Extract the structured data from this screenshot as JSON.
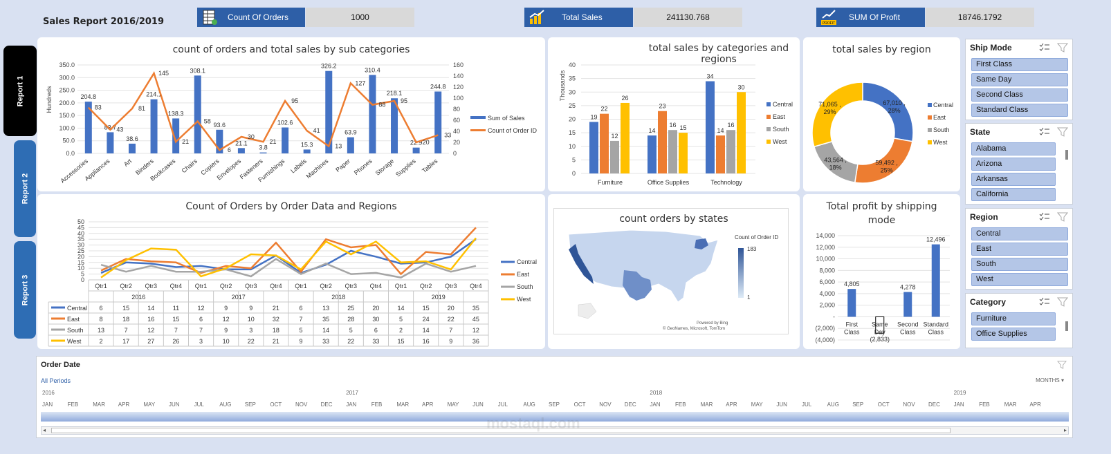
{
  "report_title": "Sales Report 2016/2019",
  "kpis": [
    {
      "label": "Count Of Orders",
      "value": "1000",
      "icon": "spreadsheet-icon"
    },
    {
      "label": "Total Sales",
      "value": "241130.768",
      "icon": "growth-chart-icon"
    },
    {
      "label": "SUM Of Profit",
      "value": "18746.1792",
      "icon": "profit-chart-icon",
      "icon_text": "PROFIT"
    }
  ],
  "tabs": [
    "Report 1",
    "Report 2",
    "Report 3"
  ],
  "charts": {
    "subcat": {
      "title": "count of orders and total sales by sub categories",
      "ylabel": "Hundreds",
      "categories": [
        "Accessories",
        "Appliances",
        "Art",
        "Binders",
        "Bookcases",
        "Chairs",
        "Copiers",
        "Envelopes",
        "Fasteners",
        "Furnishings",
        "Labels",
        "Machines",
        "Paper",
        "Phones",
        "Storage",
        "Supplies",
        "Tables"
      ],
      "sales": [
        204.8,
        83.7,
        38.6,
        214.1,
        138.3,
        308.1,
        93.6,
        21.1,
        3.8,
        102.6,
        15.3,
        326.2,
        63.9,
        310.4,
        218.1,
        22.9,
        244.8
      ],
      "sales_labels": [
        "204.8",
        "83.7",
        "38.6",
        "214.1",
        "138.3",
        "308.1",
        "93.6",
        "21.1",
        "3.8",
        "102.6",
        "15.3",
        "326.2",
        "63.9",
        "310.4",
        "218.1",
        "22.9",
        "244.8"
      ],
      "orders": [
        83,
        43,
        81,
        145,
        21,
        58,
        6,
        30,
        21,
        95,
        41,
        13,
        127,
        88,
        95,
        20,
        33
      ],
      "left_ticks": [
        "0.0",
        "50.0",
        "100.0",
        "150.0",
        "200.0",
        "250.0",
        "300.0",
        "350.0"
      ],
      "right_ticks": [
        "0",
        "20",
        "40",
        "60",
        "80",
        "100",
        "120",
        "140",
        "160"
      ],
      "legend": [
        "Sum of Sales",
        "Count of Order ID"
      ],
      "colors": {
        "bar": "#4472c4",
        "line": "#ed7d31"
      }
    },
    "cat_region": {
      "title": "total sales by categories and regions",
      "ylabel": "Thousands",
      "categories": [
        "Furniture",
        "Office Supplies",
        "Technology"
      ],
      "series": [
        {
          "name": "Central",
          "values": [
            19,
            14,
            34
          ],
          "color": "#4472c4"
        },
        {
          "name": "East",
          "values": [
            22,
            23,
            14
          ],
          "color": "#ed7d31"
        },
        {
          "name": "South",
          "values": [
            12,
            16,
            16
          ],
          "color": "#a5a5a5"
        },
        {
          "name": "West",
          "values": [
            26,
            15,
            30
          ],
          "color": "#ffc000"
        }
      ],
      "ticks": [
        "0",
        "5",
        "10",
        "15",
        "20",
        "25",
        "30",
        "35",
        "40"
      ]
    },
    "region_donut": {
      "title": "total sales by region",
      "slices": [
        {
          "name": "Central",
          "value": 67010,
          "label": "67,010 ,",
          "pct": "28%",
          "color": "#4472c4"
        },
        {
          "name": "East",
          "value": 59492,
          "label": "59,492 ,",
          "pct": "25%",
          "color": "#ed7d31"
        },
        {
          "name": "South",
          "value": 43564,
          "label": "43,564 ,",
          "pct": "18%",
          "color": "#a5a5a5"
        },
        {
          "name": "West",
          "value": 71065,
          "label": "71,065 ,",
          "pct": "29%",
          "color": "#ffc000"
        }
      ]
    },
    "orders_time": {
      "title": "Count of Orders by Order Data and Regions",
      "y_ticks": [
        "0",
        "5",
        "10",
        "15",
        "20",
        "25",
        "30",
        "35",
        "40",
        "45",
        "50"
      ],
      "quarters": [
        "Qtr1",
        "Qtr2",
        "Qtr3",
        "Qtr4",
        "Qtr1",
        "Qtr2",
        "Qtr3",
        "Qtr4",
        "Qtr1",
        "Qtr2",
        "Qtr3",
        "Qtr4",
        "Qtr1",
        "Qtr2",
        "Qtr3",
        "Qtr4"
      ],
      "years": [
        "2016",
        "2017",
        "2018",
        "2019"
      ],
      "series": [
        {
          "name": "Central",
          "values": [
            6,
            15,
            14,
            11,
            12,
            9,
            9,
            21,
            6,
            13,
            25,
            20,
            14,
            15,
            20,
            35
          ],
          "color": "#4472c4"
        },
        {
          "name": "East",
          "values": [
            8,
            18,
            16,
            15,
            6,
            12,
            10,
            32,
            7,
            35,
            28,
            30,
            5,
            24,
            22,
            45
          ],
          "color": "#ed7d31"
        },
        {
          "name": "South",
          "values": [
            13,
            7,
            12,
            7,
            7,
            9,
            3,
            18,
            5,
            14,
            5,
            6,
            2,
            14,
            7,
            12
          ],
          "color": "#a5a5a5"
        },
        {
          "name": "West",
          "values": [
            2,
            17,
            27,
            26,
            3,
            10,
            22,
            21,
            9,
            33,
            22,
            33,
            15,
            16,
            9,
            36
          ],
          "color": "#ffc000"
        }
      ]
    },
    "states_map": {
      "title": "count orders by states",
      "legend_title": "Count of Order ID",
      "legend_max": "183",
      "legend_min": "1",
      "credit_1": "Powered by Bing",
      "credit_2": "© GeoNames, Microsoft, TomTom"
    },
    "profit_ship": {
      "title": "Total profit by shipping mode",
      "categories": [
        "First Class",
        "Same Day",
        "Second Class",
        "Standard Class"
      ],
      "values": [
        4805,
        -2833,
        4278,
        12496
      ],
      "labels": [
        "4,805",
        "(2,833)",
        "4,278",
        "12,496"
      ],
      "ticks": [
        "(4,000)",
        "(2,000)",
        "-",
        "2,000",
        "4,000",
        "6,000",
        "8,000",
        "10,000",
        "12,000",
        "14,000"
      ],
      "color": "#4472c4"
    }
  },
  "slicers": [
    {
      "title": "Ship Mode",
      "items": [
        "First Class",
        "Same Day",
        "Second Class",
        "Standard Class"
      ]
    },
    {
      "title": "State",
      "items": [
        "Alabama",
        "Arizona",
        "Arkansas",
        "California"
      ]
    },
    {
      "title": "Region",
      "items": [
        "Central",
        "East",
        "South",
        "West"
      ]
    },
    {
      "title": "Category",
      "items": [
        "Furniture",
        "Office Supplies"
      ]
    }
  ],
  "timeline": {
    "title": "Order Date",
    "period": "All Periods",
    "unit": "MONTHS",
    "years": [
      "2016",
      "2017",
      "2018",
      "2019"
    ],
    "months": [
      "JAN",
      "FEB",
      "MAR",
      "APR",
      "MAY",
      "JUN",
      "JUL",
      "AUG",
      "SEP",
      "OCT",
      "NOV",
      "DEC",
      "JAN",
      "FEB",
      "MAR",
      "APR",
      "MAY",
      "JUN",
      "JUL",
      "AUG",
      "SEP",
      "OCT",
      "NOV",
      "DEC",
      "JAN",
      "FEB",
      "MAR",
      "APR",
      "MAY",
      "JUN",
      "JUL",
      "AUG",
      "SEP",
      "OCT",
      "NOV",
      "DEC",
      "JAN",
      "FEB",
      "MAR",
      "APR"
    ]
  },
  "watermark": "mostaql.com"
}
